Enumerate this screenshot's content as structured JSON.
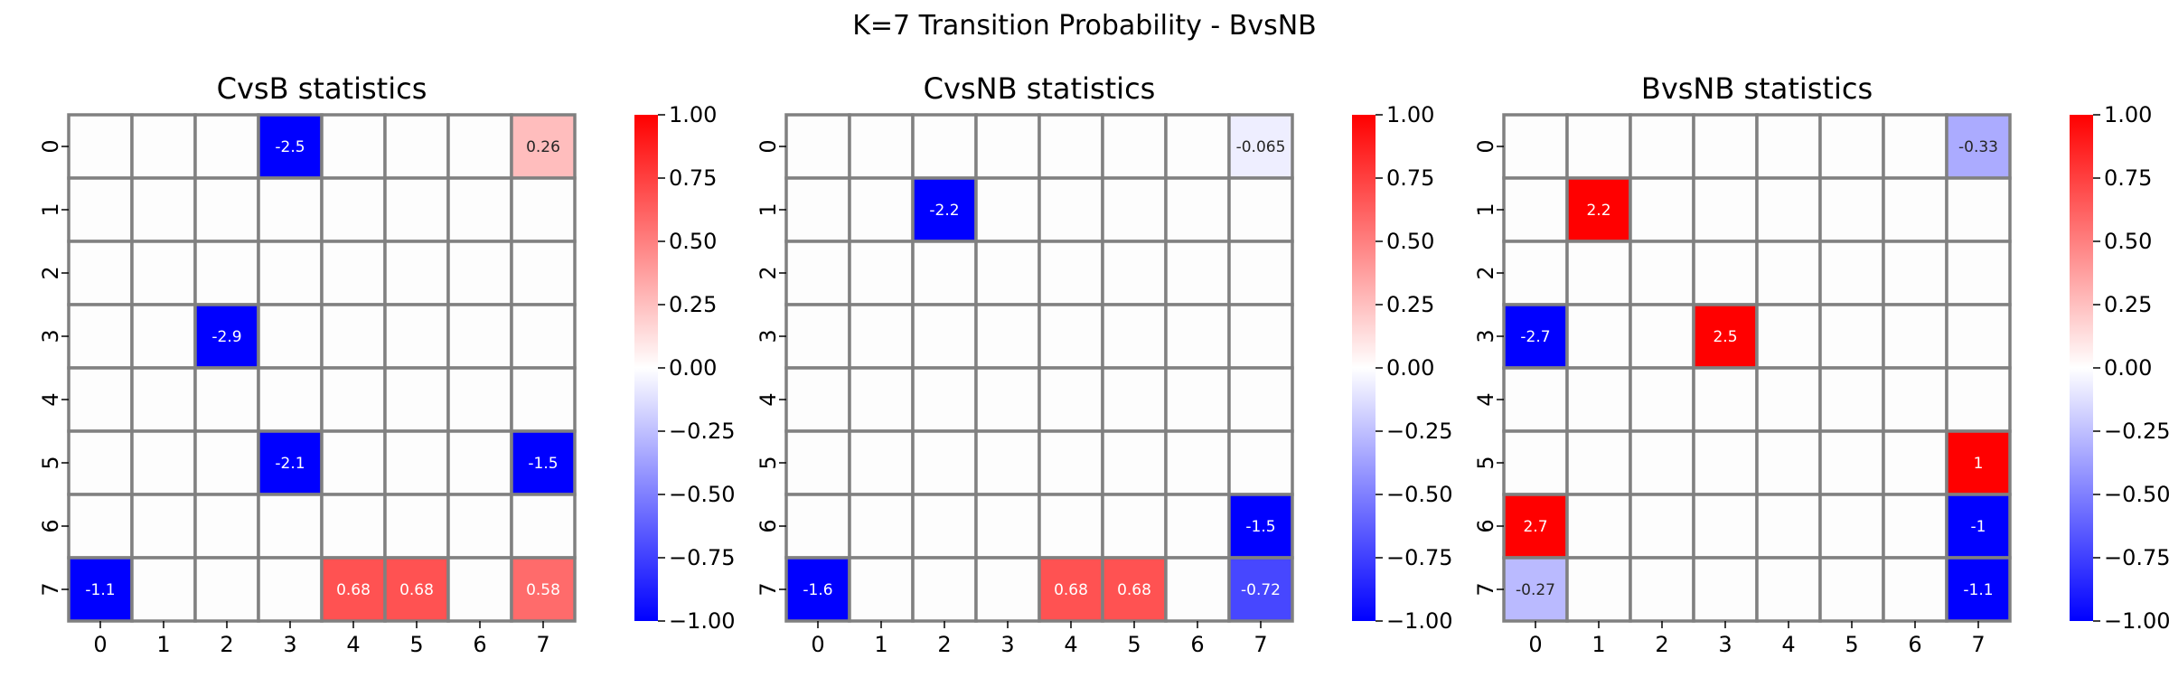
{
  "suptitle": "K=7 Transition Probability - BvsNB",
  "colorbar": {
    "ticks": [
      "1.00",
      "0.75",
      "0.50",
      "0.25",
      "0.00",
      "−0.25",
      "−0.50",
      "−0.75",
      "−1.00"
    ],
    "tick_values": [
      1.0,
      0.75,
      0.5,
      0.25,
      0.0,
      -0.25,
      -0.5,
      -0.75,
      -1.0
    ],
    "vmin": -1.0,
    "vmax": 1.0,
    "colormap": "bwr",
    "low_color": "#0000ff",
    "mid_color": "#ffffff",
    "high_color": "#ff0000"
  },
  "chart_data": [
    {
      "type": "heatmap",
      "title": "CvsB statistics",
      "x_ticks": [
        "0",
        "1",
        "2",
        "3",
        "4",
        "5",
        "6",
        "7"
      ],
      "y_ticks": [
        "0",
        "1",
        "2",
        "3",
        "4",
        "5",
        "6",
        "7"
      ],
      "cells": [
        {
          "row": 0,
          "col": 3,
          "value": -2.5,
          "label": "-2.5"
        },
        {
          "row": 0,
          "col": 7,
          "value": 0.26,
          "label": "0.26"
        },
        {
          "row": 3,
          "col": 2,
          "value": -2.9,
          "label": "-2.9"
        },
        {
          "row": 5,
          "col": 3,
          "value": -2.1,
          "label": "-2.1"
        },
        {
          "row": 5,
          "col": 7,
          "value": -1.5,
          "label": "-1.5"
        },
        {
          "row": 7,
          "col": 0,
          "value": -1.1,
          "label": "-1.1"
        },
        {
          "row": 7,
          "col": 4,
          "value": 0.68,
          "label": "0.68"
        },
        {
          "row": 7,
          "col": 5,
          "value": 0.68,
          "label": "0.68"
        },
        {
          "row": 7,
          "col": 7,
          "value": 0.58,
          "label": "0.58"
        }
      ]
    },
    {
      "type": "heatmap",
      "title": "CvsNB statistics",
      "x_ticks": [
        "0",
        "1",
        "2",
        "3",
        "4",
        "5",
        "6",
        "7"
      ],
      "y_ticks": [
        "0",
        "1",
        "2",
        "3",
        "4",
        "5",
        "6",
        "7"
      ],
      "cells": [
        {
          "row": 0,
          "col": 7,
          "value": -0.065,
          "label": "-0.065"
        },
        {
          "row": 1,
          "col": 2,
          "value": -2.2,
          "label": "-2.2"
        },
        {
          "row": 6,
          "col": 7,
          "value": -1.5,
          "label": "-1.5"
        },
        {
          "row": 7,
          "col": 0,
          "value": -1.6,
          "label": "-1.6"
        },
        {
          "row": 7,
          "col": 4,
          "value": 0.68,
          "label": "0.68"
        },
        {
          "row": 7,
          "col": 5,
          "value": 0.68,
          "label": "0.68"
        },
        {
          "row": 7,
          "col": 7,
          "value": -0.72,
          "label": "-0.72"
        }
      ]
    },
    {
      "type": "heatmap",
      "title": "BvsNB statistics",
      "x_ticks": [
        "0",
        "1",
        "2",
        "3",
        "4",
        "5",
        "6",
        "7"
      ],
      "y_ticks": [
        "0",
        "1",
        "2",
        "3",
        "4",
        "5",
        "6",
        "7"
      ],
      "cells": [
        {
          "row": 0,
          "col": 7,
          "value": -0.33,
          "label": "-0.33"
        },
        {
          "row": 1,
          "col": 1,
          "value": 2.2,
          "label": "2.2"
        },
        {
          "row": 3,
          "col": 0,
          "value": -2.7,
          "label": "-2.7"
        },
        {
          "row": 3,
          "col": 3,
          "value": 2.5,
          "label": "2.5"
        },
        {
          "row": 5,
          "col": 7,
          "value": 1,
          "label": "1"
        },
        {
          "row": 6,
          "col": 0,
          "value": 2.7,
          "label": "2.7"
        },
        {
          "row": 6,
          "col": 7,
          "value": -1,
          "label": "-1"
        },
        {
          "row": 7,
          "col": 0,
          "value": -0.27,
          "label": "-0.27"
        },
        {
          "row": 7,
          "col": 7,
          "value": -1.1,
          "label": "-1.1"
        }
      ]
    }
  ]
}
